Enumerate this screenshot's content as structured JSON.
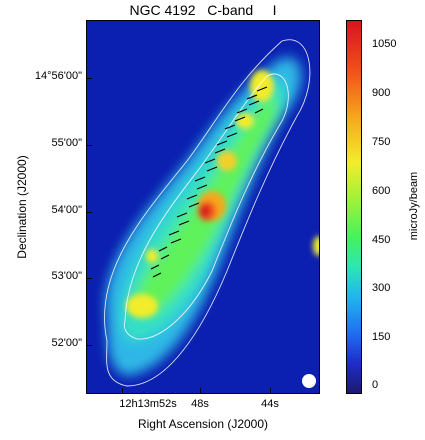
{
  "figure": {
    "title": "NGC 4192   C-band     I",
    "xlabel": "Right Ascension (J2000)",
    "ylabel": "Declination (J2000)",
    "x_ticks": [
      "12h13m52s",
      "48s",
      "44s"
    ],
    "y_ticks": [
      "14°56'00\"",
      "55'00\"",
      "54'00\"",
      "53'00\"",
      "52'00\""
    ],
    "colorbar": {
      "label": "microJy/beam",
      "ticks": [
        "1050",
        "900",
        "750",
        "600",
        "450",
        "300",
        "150",
        "0"
      ],
      "range": [
        -20,
        1120
      ]
    }
  }
}
